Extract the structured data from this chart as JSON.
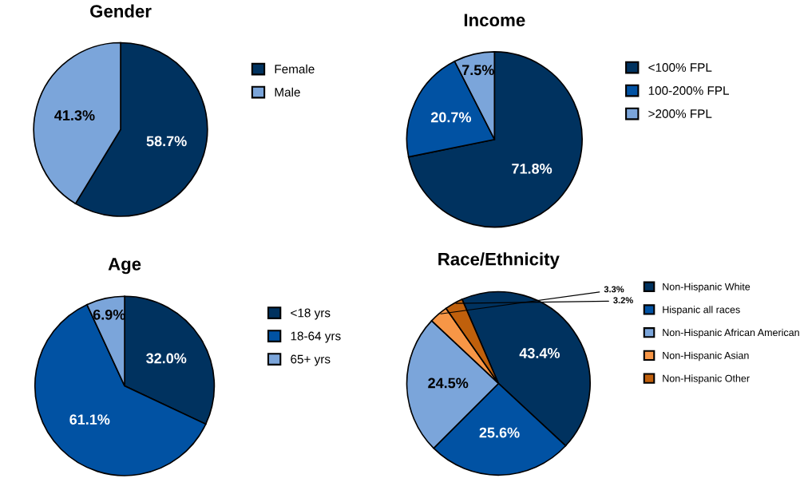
{
  "chart_data": [
    {
      "type": "pie",
      "title": "Gender",
      "categories": [
        "Female",
        "Male"
      ],
      "values": [
        58.7,
        41.3
      ],
      "colors": [
        "#00325f",
        "#7ba5da"
      ],
      "value_labels": [
        "58.7%",
        "41.3%"
      ],
      "legend": "right"
    },
    {
      "type": "pie",
      "title": "Income",
      "categories": [
        "<100% FPL",
        "100-200% FPL",
        ">200% FPL"
      ],
      "values": [
        71.8,
        20.7,
        7.5
      ],
      "colors": [
        "#00325f",
        "#0152a3",
        "#7ba5da"
      ],
      "value_labels": [
        "71.8%",
        "20.7%",
        "7.5%"
      ],
      "legend": "right"
    },
    {
      "type": "pie",
      "title": "Age",
      "categories": [
        "<18 yrs",
        "18-64 yrs",
        "65+ yrs"
      ],
      "values": [
        32.0,
        61.1,
        6.9
      ],
      "colors": [
        "#00325f",
        "#0152a3",
        "#7ba5da"
      ],
      "value_labels": [
        "32.0%",
        "61.1%",
        "6.9%"
      ],
      "legend": "right"
    },
    {
      "type": "pie",
      "title": "Race/Ethnicity",
      "categories": [
        "Non-Hispanic White",
        "Hispanic all races",
        "Non-Hispanic African American",
        "Non-Hispanic Asian",
        "Non-Hispanic Other"
      ],
      "values": [
        43.4,
        25.6,
        24.5,
        3.3,
        3.2
      ],
      "colors": [
        "#00325f",
        "#0152a3",
        "#7ba5da",
        "#f79646",
        "#c0600c"
      ],
      "value_labels": [
        "43.4%",
        "25.6%",
        "24.5%",
        "3.3%",
        "3.2%"
      ],
      "legend": "right"
    }
  ]
}
